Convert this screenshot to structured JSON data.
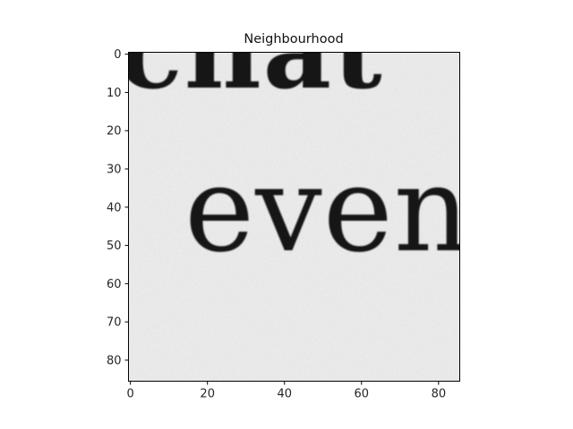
{
  "chart_data": {
    "type": "heatmap",
    "title": "Neighbourhood",
    "xlabel": "",
    "ylabel": "",
    "xlim": [
      -0.5,
      85.5
    ],
    "ylim": [
      85.5,
      -0.5
    ],
    "xticks": [
      0,
      20,
      40,
      60,
      80
    ],
    "yticks": [
      0,
      10,
      20,
      30,
      40,
      50,
      60,
      70,
      80
    ],
    "colormap": "gray",
    "grid": false,
    "image_content": {
      "description_text_fragments": [
        "chat",
        "even"
      ],
      "background_color": "#ececec",
      "ink_color": "#151515"
    }
  }
}
